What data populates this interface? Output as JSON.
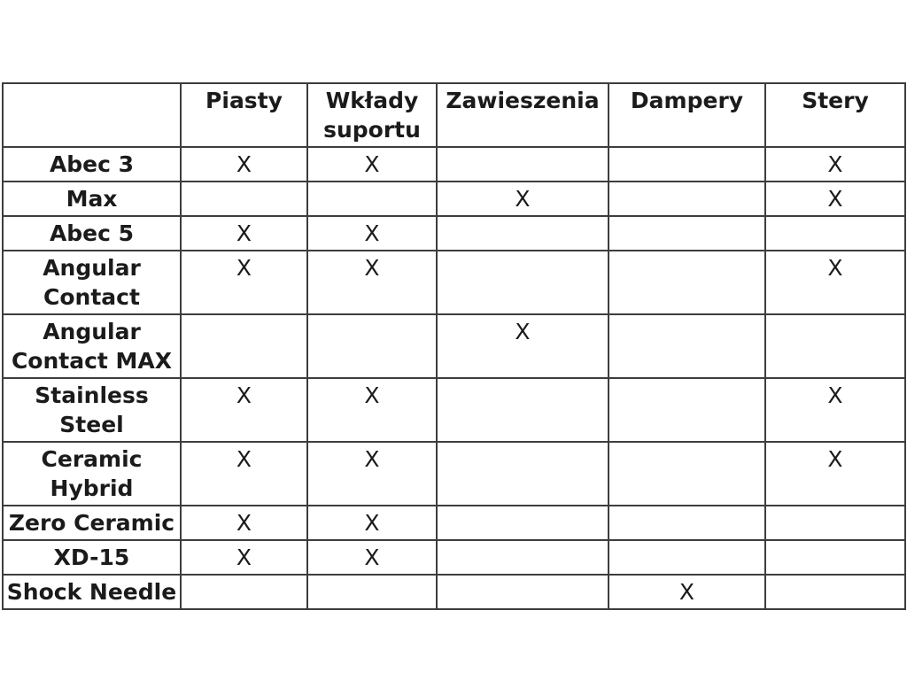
{
  "chart_data": {
    "type": "table",
    "title": "",
    "mark_symbol": "X",
    "columns": [
      "",
      "Piasty",
      "Wkłady suportu",
      "Zawieszenia",
      "Dampery",
      "Stery"
    ],
    "rows": [
      {
        "label": "Abec 3",
        "cells": [
          "X",
          "X",
          "",
          "",
          "X"
        ]
      },
      {
        "label": "Max",
        "cells": [
          "",
          "",
          "X",
          "",
          "X"
        ]
      },
      {
        "label": "Abec 5",
        "cells": [
          "X",
          "X",
          "",
          "",
          ""
        ]
      },
      {
        "label": "Angular Contact",
        "cells": [
          "X",
          "X",
          "",
          "",
          "X"
        ]
      },
      {
        "label": "Angular Contact MAX",
        "cells": [
          "",
          "",
          "X",
          "",
          ""
        ]
      },
      {
        "label": "Stainless Steel",
        "cells": [
          "X",
          "X",
          "",
          "",
          "X"
        ]
      },
      {
        "label": "Ceramic Hybrid",
        "cells": [
          "X",
          "X",
          "",
          "",
          "X"
        ]
      },
      {
        "label": "Zero Ceramic",
        "cells": [
          "X",
          "X",
          "",
          "",
          ""
        ]
      },
      {
        "label": "XD-15",
        "cells": [
          "X",
          "X",
          "",
          "",
          ""
        ]
      },
      {
        "label": "Shock Needle",
        "cells": [
          "",
          "",
          "",
          "X",
          ""
        ]
      }
    ]
  },
  "display": {
    "header_lines": [
      "",
      "Piasty",
      "Wkłady\nsuportu",
      "Zawieszenia",
      "Dampery",
      "Stery"
    ],
    "label_lines": [
      "Abec 3",
      "Max",
      "Abec 5",
      "Angular\nContact",
      "Angular\nContact MAX",
      "Stainless\nSteel",
      "Ceramic\nHybrid",
      "Zero Ceramic",
      "XD-15",
      "Shock Needle"
    ]
  },
  "colors": {
    "text": "#1b1b1b",
    "border": "#3d3d3d",
    "background": "#ffffff"
  }
}
